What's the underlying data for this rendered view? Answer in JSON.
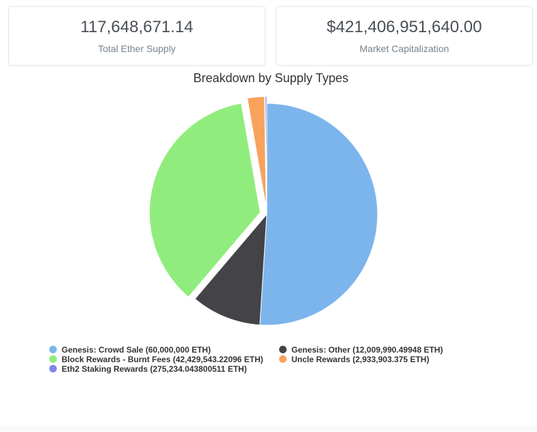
{
  "cards": [
    {
      "value": "117,648,671.14",
      "label": "Total Ether Supply"
    },
    {
      "value": "$421,406,951,640.00",
      "label": "Market Capitalization"
    }
  ],
  "chart_data": {
    "type": "pie",
    "title": "Breakdown by Supply Types",
    "categories": [
      "Genesis: Crowd Sale",
      "Genesis: Other",
      "Block Rewards - Burnt Fees",
      "Uncle Rewards",
      "Eth2 Staking Rewards"
    ],
    "values": [
      60000000,
      12009990.49948,
      42429543.22096,
      2933903.375,
      275234.043800511
    ],
    "legend_labels": [
      "Genesis: Crowd Sale (60,000,000 ETH)",
      "Genesis: Other (12,009,990.49948 ETH)",
      "Block Rewards - Burnt Fees (42,429,543.22096 ETH)",
      "Uncle Rewards (2,933,903.375 ETH)",
      "Eth2 Staking Rewards (275,234.043800511 ETH)"
    ],
    "colors": [
      "#7cb5ec",
      "#434348",
      "#90ed7d",
      "#f7a35c",
      "#8085e9"
    ],
    "sliced": [
      false,
      false,
      true,
      true,
      true
    ],
    "legend_position": "bottom"
  }
}
